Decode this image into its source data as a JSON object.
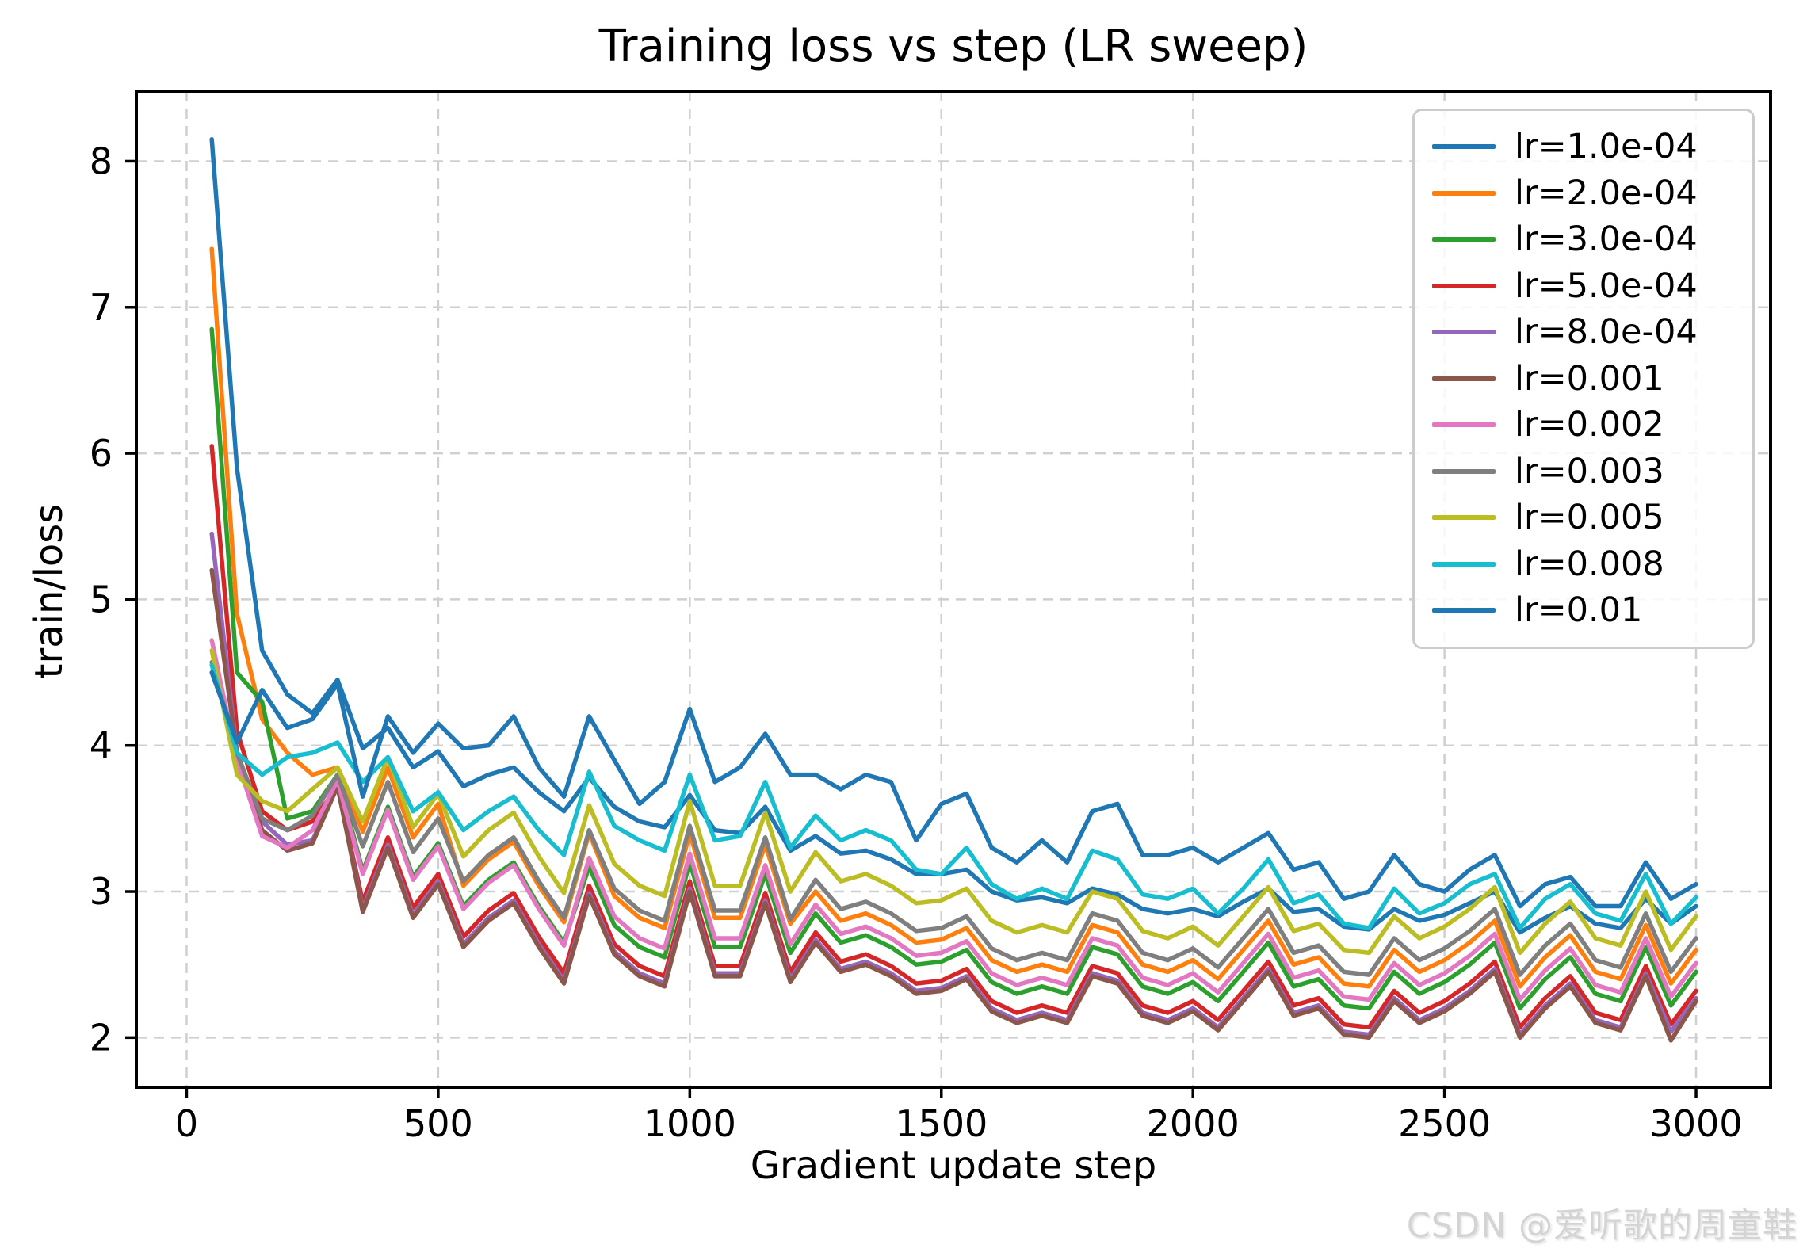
{
  "watermark": "CSDN @爱听歌的周童鞋",
  "chart_data": {
    "type": "line",
    "title": "Training loss vs step (LR sweep)",
    "xlabel": "Gradient update step",
    "ylabel": "train/loss",
    "xlim": [
      -100,
      3148
    ],
    "ylim": [
      1.66,
      8.48
    ],
    "x_ticks": [
      0,
      500,
      1000,
      1500,
      2000,
      2500,
      3000
    ],
    "y_ticks": [
      2,
      3,
      4,
      5,
      6,
      7,
      8
    ],
    "grid": true,
    "grid_style": "dashed",
    "legend_position": "upper right",
    "x": [
      50,
      100,
      150,
      200,
      250,
      300,
      350,
      400,
      450,
      500,
      550,
      600,
      650,
      700,
      750,
      800,
      850,
      900,
      950,
      1000,
      1050,
      1100,
      1150,
      1200,
      1250,
      1300,
      1350,
      1400,
      1450,
      1500,
      1550,
      1600,
      1650,
      1700,
      1750,
      1800,
      1850,
      1900,
      1950,
      2000,
      2050,
      2100,
      2150,
      2200,
      2250,
      2300,
      2350,
      2400,
      2450,
      2500,
      2550,
      2600,
      2650,
      2700,
      2750,
      2800,
      2850,
      2900,
      2950,
      3000
    ],
    "series": [
      {
        "name": "lr=1.0e-04",
        "color": "#1f77b4",
        "values": [
          8.15,
          5.9,
          4.65,
          4.35,
          4.22,
          4.45,
          3.98,
          4.12,
          3.85,
          3.96,
          3.72,
          3.8,
          3.85,
          3.68,
          3.55,
          3.78,
          3.58,
          3.48,
          3.44,
          3.66,
          3.42,
          3.4,
          3.58,
          3.28,
          3.38,
          3.26,
          3.28,
          3.22,
          3.12,
          3.12,
          3.15,
          3.0,
          2.94,
          2.96,
          2.92,
          3.02,
          2.98,
          2.88,
          2.85,
          2.88,
          2.83,
          2.93,
          3.02,
          2.86,
          2.88,
          2.76,
          2.74,
          2.88,
          2.8,
          2.84,
          2.92,
          3.0,
          2.72,
          2.82,
          2.9,
          2.78,
          2.75,
          2.95,
          2.78,
          2.9
        ]
      },
      {
        "name": "lr=2.0e-04",
        "color": "#ff7f0e",
        "values": [
          7.4,
          4.9,
          4.18,
          3.95,
          3.8,
          3.85,
          3.41,
          3.85,
          3.37,
          3.6,
          3.04,
          3.22,
          3.34,
          3.04,
          2.79,
          3.4,
          2.97,
          2.82,
          2.75,
          3.4,
          2.82,
          2.82,
          3.32,
          2.78,
          3.0,
          2.8,
          2.85,
          2.77,
          2.65,
          2.67,
          2.75,
          2.53,
          2.45,
          2.5,
          2.45,
          2.77,
          2.72,
          2.5,
          2.45,
          2.53,
          2.4,
          2.6,
          2.8,
          2.5,
          2.55,
          2.37,
          2.35,
          2.6,
          2.45,
          2.53,
          2.65,
          2.8,
          2.35,
          2.55,
          2.7,
          2.45,
          2.4,
          2.77,
          2.37,
          2.6
        ]
      },
      {
        "name": "lr=3.0e-04",
        "color": "#2ca02c",
        "values": [
          6.85,
          4.5,
          4.3,
          3.5,
          3.55,
          3.8,
          3.14,
          3.58,
          3.1,
          3.33,
          2.9,
          3.08,
          3.2,
          2.9,
          2.65,
          3.17,
          2.77,
          2.62,
          2.55,
          3.2,
          2.62,
          2.62,
          3.12,
          2.58,
          2.85,
          2.65,
          2.7,
          2.62,
          2.5,
          2.52,
          2.6,
          2.38,
          2.3,
          2.35,
          2.3,
          2.62,
          2.57,
          2.35,
          2.3,
          2.38,
          2.25,
          2.45,
          2.65,
          2.35,
          2.4,
          2.22,
          2.2,
          2.45,
          2.3,
          2.38,
          2.5,
          2.65,
          2.2,
          2.4,
          2.55,
          2.3,
          2.25,
          2.62,
          2.22,
          2.45
        ]
      },
      {
        "name": "lr=5.0e-04",
        "color": "#d62728",
        "values": [
          6.05,
          4.1,
          3.55,
          3.42,
          3.48,
          3.72,
          2.93,
          3.37,
          2.89,
          3.12,
          2.69,
          2.87,
          2.99,
          2.69,
          2.44,
          3.04,
          2.64,
          2.49,
          2.42,
          3.07,
          2.49,
          2.49,
          2.99,
          2.45,
          2.72,
          2.52,
          2.57,
          2.49,
          2.37,
          2.39,
          2.47,
          2.25,
          2.17,
          2.22,
          2.17,
          2.49,
          2.44,
          2.22,
          2.17,
          2.25,
          2.12,
          2.32,
          2.52,
          2.22,
          2.27,
          2.09,
          2.07,
          2.32,
          2.17,
          2.25,
          2.37,
          2.52,
          2.07,
          2.27,
          2.42,
          2.17,
          2.12,
          2.49,
          2.09,
          2.32
        ]
      },
      {
        "name": "lr=8.0e-04",
        "color": "#9467bd",
        "values": [
          5.45,
          3.95,
          3.48,
          3.32,
          3.35,
          3.72,
          2.88,
          3.32,
          2.84,
          3.07,
          2.64,
          2.82,
          2.94,
          2.64,
          2.39,
          2.99,
          2.59,
          2.44,
          2.37,
          3.02,
          2.44,
          2.44,
          2.94,
          2.4,
          2.67,
          2.47,
          2.52,
          2.44,
          2.32,
          2.34,
          2.42,
          2.2,
          2.12,
          2.17,
          2.12,
          2.44,
          2.39,
          2.17,
          2.12,
          2.2,
          2.07,
          2.27,
          2.47,
          2.17,
          2.22,
          2.04,
          2.02,
          2.27,
          2.12,
          2.2,
          2.32,
          2.47,
          2.02,
          2.22,
          2.37,
          2.12,
          2.07,
          2.44,
          2.04,
          2.27
        ]
      },
      {
        "name": "lr=0.001",
        "color": "#8c564b",
        "values": [
          5.2,
          3.95,
          3.42,
          3.28,
          3.33,
          3.72,
          2.86,
          3.3,
          2.82,
          3.05,
          2.62,
          2.8,
          2.92,
          2.62,
          2.37,
          2.97,
          2.57,
          2.42,
          2.35,
          3.0,
          2.42,
          2.42,
          2.92,
          2.38,
          2.65,
          2.45,
          2.5,
          2.42,
          2.3,
          2.32,
          2.4,
          2.18,
          2.1,
          2.15,
          2.1,
          2.42,
          2.37,
          2.15,
          2.1,
          2.18,
          2.05,
          2.25,
          2.45,
          2.15,
          2.2,
          2.02,
          2.0,
          2.25,
          2.1,
          2.18,
          2.3,
          2.45,
          2.0,
          2.2,
          2.35,
          2.1,
          2.05,
          2.42,
          1.98,
          2.25
        ]
      },
      {
        "name": "lr=0.002",
        "color": "#e377c2",
        "values": [
          4.72,
          3.9,
          3.38,
          3.3,
          3.42,
          3.76,
          3.12,
          3.56,
          3.08,
          3.31,
          2.88,
          3.06,
          3.18,
          2.88,
          2.63,
          3.23,
          2.83,
          2.68,
          2.61,
          3.26,
          2.68,
          2.68,
          3.18,
          2.64,
          2.91,
          2.71,
          2.76,
          2.68,
          2.56,
          2.58,
          2.66,
          2.44,
          2.36,
          2.41,
          2.36,
          2.68,
          2.63,
          2.41,
          2.36,
          2.44,
          2.31,
          2.51,
          2.71,
          2.41,
          2.46,
          2.28,
          2.26,
          2.51,
          2.36,
          2.44,
          2.56,
          2.71,
          2.26,
          2.46,
          2.61,
          2.36,
          2.31,
          2.68,
          2.28,
          2.51
        ]
      },
      {
        "name": "lr=0.003",
        "color": "#7f7f7f",
        "values": [
          4.57,
          3.95,
          3.5,
          3.42,
          3.52,
          3.8,
          3.31,
          3.75,
          3.27,
          3.5,
          3.07,
          3.25,
          3.37,
          3.07,
          2.82,
          3.42,
          3.02,
          2.87,
          2.8,
          3.45,
          2.87,
          2.87,
          3.37,
          2.81,
          3.08,
          2.88,
          2.93,
          2.85,
          2.73,
          2.75,
          2.83,
          2.61,
          2.53,
          2.58,
          2.53,
          2.85,
          2.8,
          2.58,
          2.53,
          2.61,
          2.48,
          2.68,
          2.88,
          2.58,
          2.63,
          2.45,
          2.43,
          2.68,
          2.53,
          2.61,
          2.73,
          2.88,
          2.43,
          2.63,
          2.78,
          2.53,
          2.48,
          2.85,
          2.45,
          2.68
        ]
      },
      {
        "name": "lr=0.005",
        "color": "#bcbd22",
        "values": [
          4.65,
          3.8,
          3.62,
          3.55,
          3.7,
          3.85,
          3.48,
          3.92,
          3.44,
          3.67,
          3.24,
          3.42,
          3.54,
          3.24,
          2.99,
          3.59,
          3.19,
          3.04,
          2.97,
          3.62,
          3.04,
          3.04,
          3.54,
          3.0,
          3.27,
          3.07,
          3.12,
          3.04,
          2.92,
          2.94,
          3.02,
          2.8,
          2.72,
          2.77,
          2.72,
          3.0,
          2.95,
          2.73,
          2.68,
          2.76,
          2.63,
          2.83,
          3.03,
          2.73,
          2.78,
          2.6,
          2.58,
          2.83,
          2.68,
          2.76,
          2.88,
          3.03,
          2.58,
          2.78,
          2.93,
          2.68,
          2.63,
          3.0,
          2.6,
          2.83
        ]
      },
      {
        "name": "lr=0.008",
        "color": "#17becf",
        "values": [
          4.55,
          3.95,
          3.8,
          3.92,
          3.95,
          4.02,
          3.75,
          3.92,
          3.55,
          3.68,
          3.42,
          3.55,
          3.65,
          3.42,
          3.25,
          3.82,
          3.45,
          3.35,
          3.28,
          3.8,
          3.35,
          3.38,
          3.75,
          3.3,
          3.52,
          3.35,
          3.42,
          3.35,
          3.15,
          3.12,
          3.3,
          3.05,
          2.95,
          3.02,
          2.95,
          3.28,
          3.22,
          2.98,
          2.95,
          3.02,
          2.85,
          3.02,
          3.22,
          2.92,
          2.98,
          2.78,
          2.75,
          3.02,
          2.85,
          2.92,
          3.05,
          3.12,
          2.75,
          2.95,
          3.05,
          2.85,
          2.8,
          3.12,
          2.78,
          2.96
        ]
      },
      {
        "name": "lr=0.01",
        "color": "#1f77b4",
        "values": [
          4.5,
          4.02,
          4.38,
          4.12,
          4.18,
          4.42,
          3.65,
          4.2,
          3.95,
          4.15,
          3.98,
          4.0,
          4.2,
          3.85,
          3.65,
          4.2,
          3.9,
          3.6,
          3.75,
          4.25,
          3.75,
          3.85,
          4.08,
          3.8,
          3.8,
          3.7,
          3.8,
          3.75,
          3.35,
          3.6,
          3.67,
          3.3,
          3.2,
          3.35,
          3.2,
          3.55,
          3.6,
          3.25,
          3.25,
          3.3,
          3.2,
          3.3,
          3.4,
          3.15,
          3.2,
          2.95,
          3.0,
          3.25,
          3.05,
          3.0,
          3.15,
          3.25,
          2.9,
          3.05,
          3.1,
          2.9,
          2.9,
          3.2,
          2.95,
          3.05
        ]
      }
    ]
  }
}
